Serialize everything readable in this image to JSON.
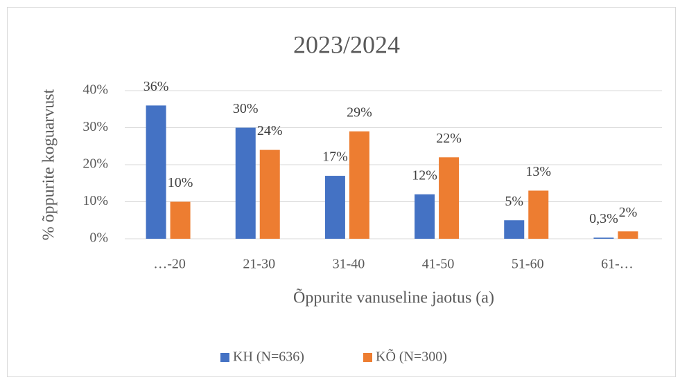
{
  "chart_data": {
    "type": "bar",
    "title": "2023/2024",
    "y_label": "% õppurite koguarvust",
    "x_label": "Õppurite vanuseline jaotus (a)",
    "categories": [
      "…-20",
      "21-30",
      "31-40",
      "41-50",
      "51-60",
      "61-…"
    ],
    "series": [
      {
        "name": "KH (N=636)",
        "color": "#4472c4",
        "values": [
          36,
          30,
          17,
          12,
          5,
          0.3
        ],
        "value_labels": [
          "36%",
          "30%",
          "17%",
          "12%",
          "5%",
          "0,3%"
        ]
      },
      {
        "name": "KÕ (N=300)",
        "color": "#ed7d31",
        "values": [
          10,
          24,
          29,
          22,
          13,
          2
        ],
        "value_labels": [
          "10%",
          "24%",
          "29%",
          "22%",
          "13%",
          "2%"
        ]
      }
    ],
    "ylim": [
      0,
      40
    ],
    "yticks": [
      {
        "value": 0,
        "label": "0%"
      },
      {
        "value": 10,
        "label": "10%"
      },
      {
        "value": 20,
        "label": "20%"
      },
      {
        "value": 30,
        "label": "30%"
      },
      {
        "value": 40,
        "label": "40%"
      }
    ],
    "grid": true,
    "legend": "bottom"
  }
}
